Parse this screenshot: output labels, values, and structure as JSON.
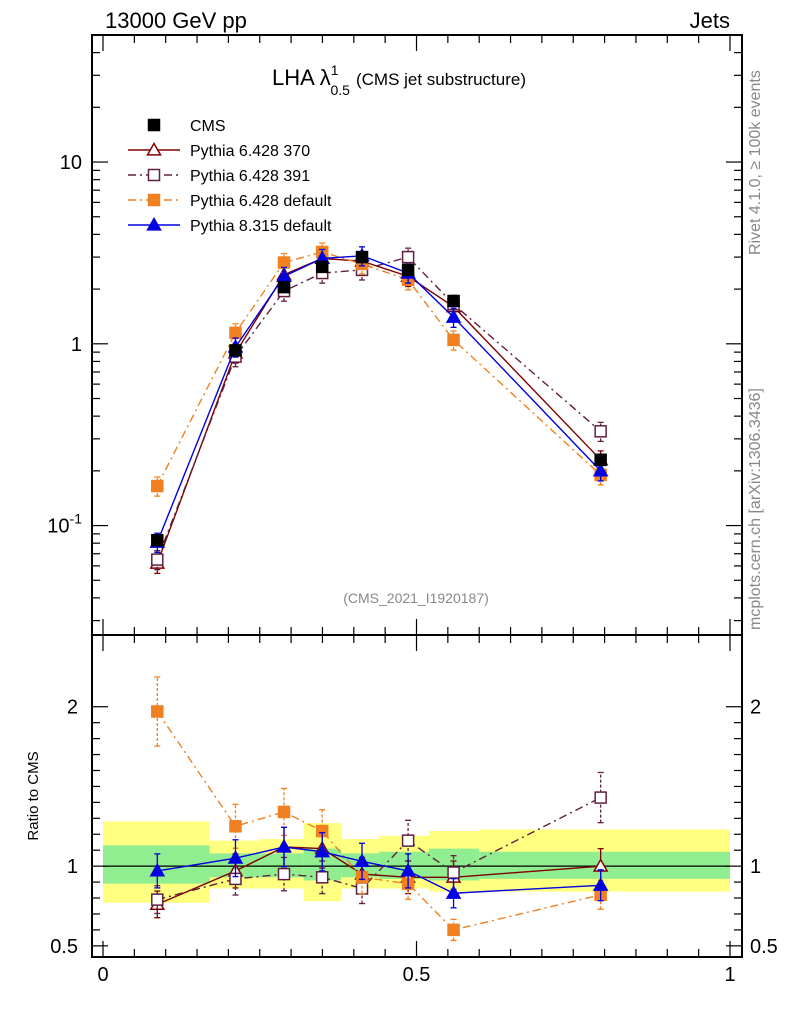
{
  "header": {
    "left": "13000 GeV pp",
    "right": "Jets"
  },
  "side_labels": {
    "rivet": "Rivet 4.1.0, ≥ 100k events",
    "mcplots": "mcplots.cern.ch [arXiv:1306.3436]"
  },
  "chart_data": [
    {
      "type": "line",
      "panel": "main",
      "title_main": "LHA λ",
      "title_sup": "1",
      "title_sub": "0.5",
      "title_rest": "(CMS jet substructure)",
      "analysis_label": "(CMS_2021_I1920187)",
      "yscale": "log",
      "xlim": [
        0,
        1
      ],
      "ylim": [
        0.025,
        50
      ],
      "ytick_labels": [
        "10",
        "1",
        "10^-1"
      ],
      "ytick_values": [
        10,
        1,
        0.1
      ],
      "legend_position": "top-left",
      "series": [
        {
          "name": "CMS",
          "color": "#000000",
          "marker": "square-filled",
          "line": "none",
          "x": [
            0.0866,
            0.2113,
            0.2887,
            0.3496,
            0.4131,
            0.4866,
            0.5591,
            0.7937
          ],
          "y": [
            0.083,
            0.92,
            2.05,
            2.65,
            3.0,
            2.55,
            1.72,
            0.23
          ]
        },
        {
          "name": "Pythia 6.428 370",
          "color": "#800000",
          "marker": "triangle-open",
          "line": "solid",
          "x": [
            0.0866,
            0.2113,
            0.2887,
            0.3496,
            0.4131,
            0.4866,
            0.5591,
            0.7937
          ],
          "y": [
            0.062,
            0.89,
            2.4,
            2.95,
            2.85,
            2.35,
            1.6,
            0.23
          ]
        },
        {
          "name": "Pythia 6.428 391",
          "color": "#602040",
          "marker": "square-open",
          "line": "dashdot",
          "x": [
            0.0866,
            0.2113,
            0.2887,
            0.3496,
            0.4131,
            0.4866,
            0.5591,
            0.7937
          ],
          "y": [
            0.065,
            0.85,
            1.95,
            2.45,
            2.55,
            3.0,
            1.65,
            0.33
          ]
        },
        {
          "name": "Pythia 6.428 default",
          "color": "#f08020",
          "marker": "square-filled",
          "line": "dashdot",
          "x": [
            0.0866,
            0.2113,
            0.2887,
            0.3496,
            0.4131,
            0.4866,
            0.5591,
            0.7937
          ],
          "y": [
            0.165,
            1.15,
            2.8,
            3.2,
            2.75,
            2.25,
            1.05,
            0.19
          ]
        },
        {
          "name": "Pythia 8.315 default",
          "color": "#0000e0",
          "marker": "triangle-filled",
          "line": "solid",
          "x": [
            0.0866,
            0.2113,
            0.2887,
            0.3496,
            0.4131,
            0.4866,
            0.5591,
            0.7937
          ],
          "y": [
            0.081,
            0.96,
            2.35,
            2.95,
            3.05,
            2.45,
            1.4,
            0.2
          ]
        }
      ]
    },
    {
      "type": "line",
      "panel": "ratio",
      "ylabel": "Ratio to CMS",
      "xlim": [
        0,
        1
      ],
      "ylim": [
        0.43,
        2.45
      ],
      "xtick_labels": [
        "0",
        "0.5",
        "1"
      ],
      "xtick_values": [
        0,
        0.5,
        1
      ],
      "ytick_labels": [
        "2",
        "1",
        "0.5"
      ],
      "ytick_values": [
        2,
        1,
        0.5
      ],
      "bins": [
        {
          "x0": 0.0,
          "x1": 0.17,
          "g": [
            0.89,
            1.13
          ],
          "y": [
            0.77,
            1.28
          ]
        },
        {
          "x0": 0.17,
          "x1": 0.25,
          "g": [
            0.93,
            1.08
          ],
          "y": [
            0.86,
            1.16
          ]
        },
        {
          "x0": 0.25,
          "x1": 0.32,
          "g": [
            0.93,
            1.08
          ],
          "y": [
            0.86,
            1.17
          ]
        },
        {
          "x0": 0.32,
          "x1": 0.38,
          "g": [
            0.91,
            1.11
          ],
          "y": [
            0.78,
            1.27
          ]
        },
        {
          "x0": 0.38,
          "x1": 0.44,
          "g": [
            0.93,
            1.08
          ],
          "y": [
            0.86,
            1.17
          ]
        },
        {
          "x0": 0.44,
          "x1": 0.52,
          "g": [
            0.92,
            1.09
          ],
          "y": [
            0.86,
            1.19
          ]
        },
        {
          "x0": 0.52,
          "x1": 0.6,
          "g": [
            0.91,
            1.11
          ],
          "y": [
            0.84,
            1.22
          ]
        },
        {
          "x0": 0.6,
          "x1": 1.0,
          "g": [
            0.92,
            1.09
          ],
          "y": [
            0.84,
            1.23
          ]
        }
      ],
      "series": [
        {
          "name": "Pythia 6.428 370",
          "color": "#800000",
          "marker": "triangle-open",
          "line": "solid",
          "x": [
            0.0866,
            0.2113,
            0.2887,
            0.3496,
            0.4131,
            0.4866,
            0.5591,
            0.7937
          ],
          "y": [
            0.76,
            0.97,
            1.12,
            1.11,
            0.95,
            0.93,
            0.93,
            1.0
          ]
        },
        {
          "name": "Pythia 6.428 391",
          "color": "#602040",
          "marker": "square-open",
          "line": "dashdot",
          "x": [
            0.0866,
            0.2113,
            0.2887,
            0.3496,
            0.4131,
            0.4866,
            0.5591,
            0.7937
          ],
          "y": [
            0.79,
            0.92,
            0.95,
            0.93,
            0.86,
            1.16,
            0.96,
            1.43
          ]
        },
        {
          "name": "Pythia 6.428 default",
          "color": "#f08020",
          "marker": "square-filled",
          "line": "dashdot",
          "x": [
            0.0866,
            0.2113,
            0.2887,
            0.3496,
            0.4131,
            0.4866,
            0.5591,
            0.7937
          ],
          "y": [
            1.97,
            1.25,
            1.34,
            1.22,
            0.93,
            0.89,
            0.6,
            0.82
          ]
        },
        {
          "name": "Pythia 8.315 default",
          "color": "#0000e0",
          "marker": "triangle-filled",
          "line": "solid",
          "x": [
            0.0866,
            0.2113,
            0.2887,
            0.3496,
            0.4131,
            0.4866,
            0.5591,
            0.7937
          ],
          "y": [
            0.97,
            1.05,
            1.12,
            1.09,
            1.03,
            0.97,
            0.83,
            0.88
          ]
        }
      ]
    }
  ]
}
